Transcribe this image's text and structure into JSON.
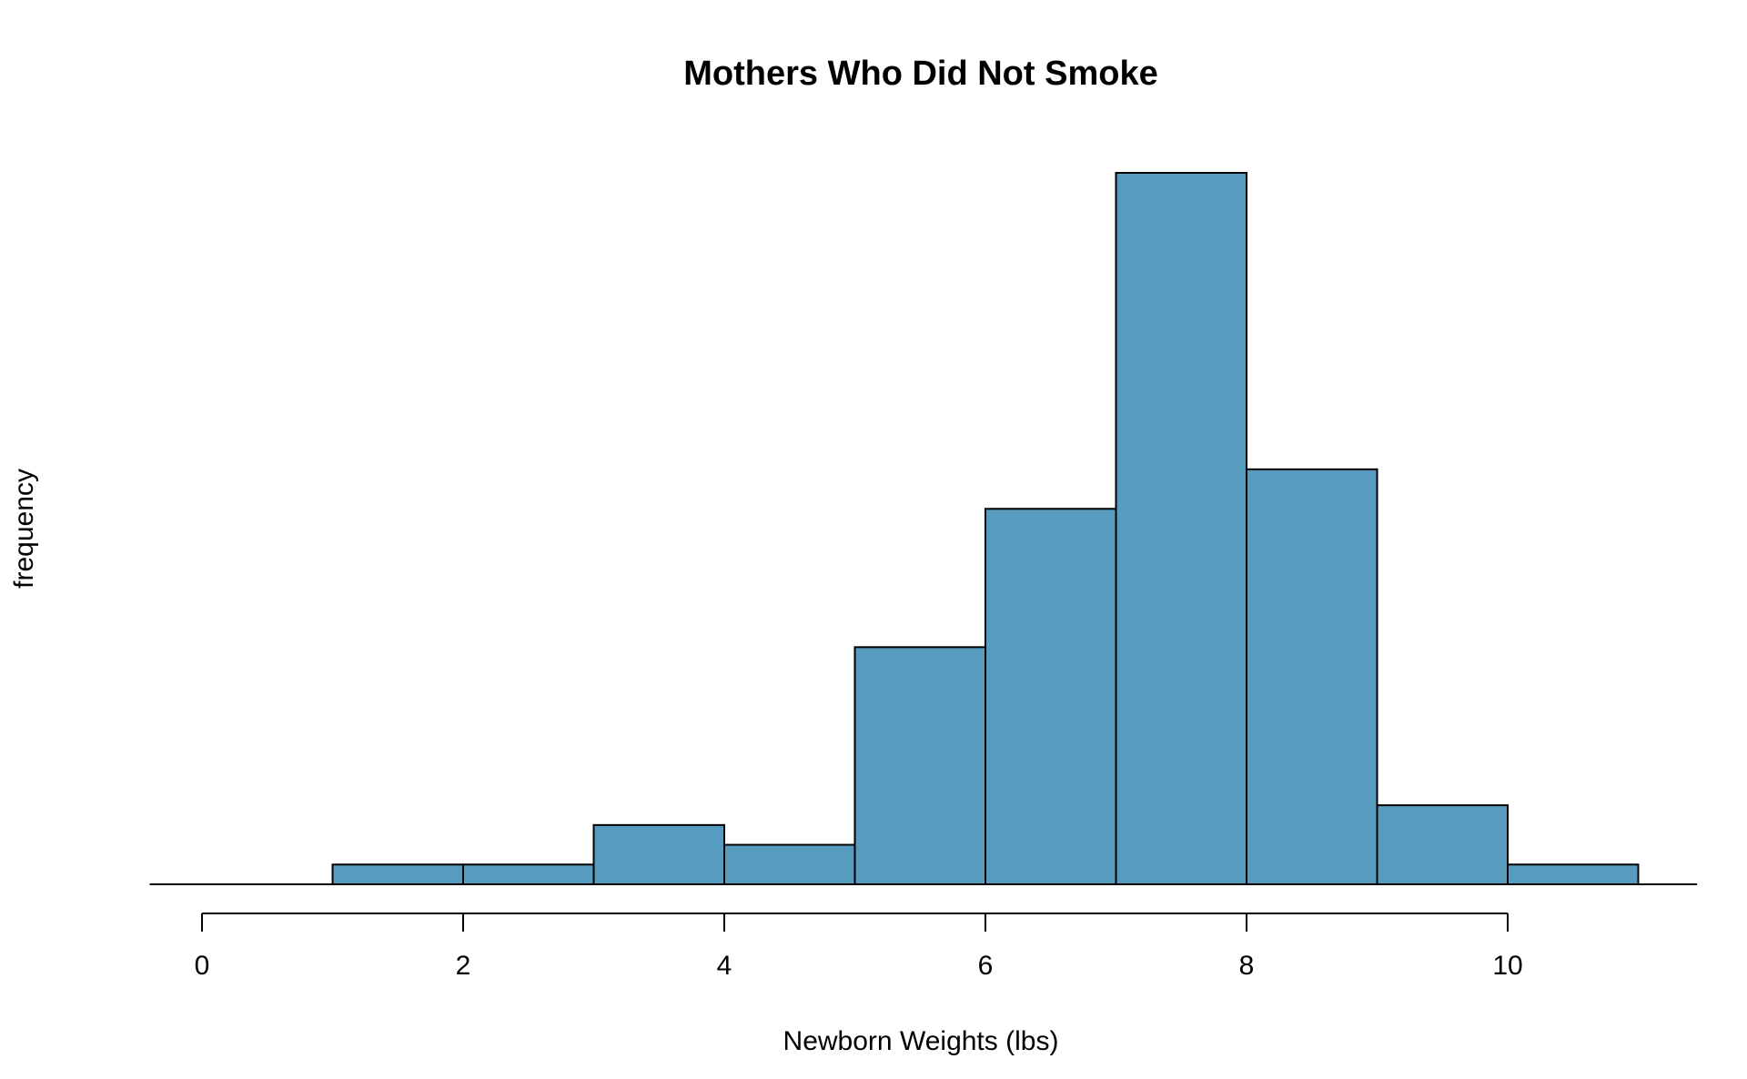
{
  "chart_data": {
    "type": "bar",
    "title": "Mothers Who Did Not Smoke",
    "xlabel": "Newborn Weights (lbs)",
    "ylabel": "frequency",
    "bins": [
      {
        "start": 1,
        "end": 2,
        "frequency": 1
      },
      {
        "start": 2,
        "end": 3,
        "frequency": 1
      },
      {
        "start": 3,
        "end": 4,
        "frequency": 3
      },
      {
        "start": 4,
        "end": 5,
        "frequency": 2
      },
      {
        "start": 5,
        "end": 6,
        "frequency": 12
      },
      {
        "start": 6,
        "end": 7,
        "frequency": 19
      },
      {
        "start": 7,
        "end": 8,
        "frequency": 36
      },
      {
        "start": 8,
        "end": 9,
        "frequency": 21
      },
      {
        "start": 9,
        "end": 10,
        "frequency": 4
      },
      {
        "start": 10,
        "end": 11,
        "frequency": 1
      }
    ],
    "xticks": [
      0,
      2,
      4,
      6,
      8,
      10
    ],
    "xtick_labels": [
      "0",
      "2",
      "4",
      "6",
      "8",
      "10"
    ],
    "xlim": [
      -0.4,
      11.45
    ],
    "ylim": [
      0,
      36
    ],
    "grid": false,
    "bar_color": "#579bbf",
    "edge_color": "#000000"
  }
}
